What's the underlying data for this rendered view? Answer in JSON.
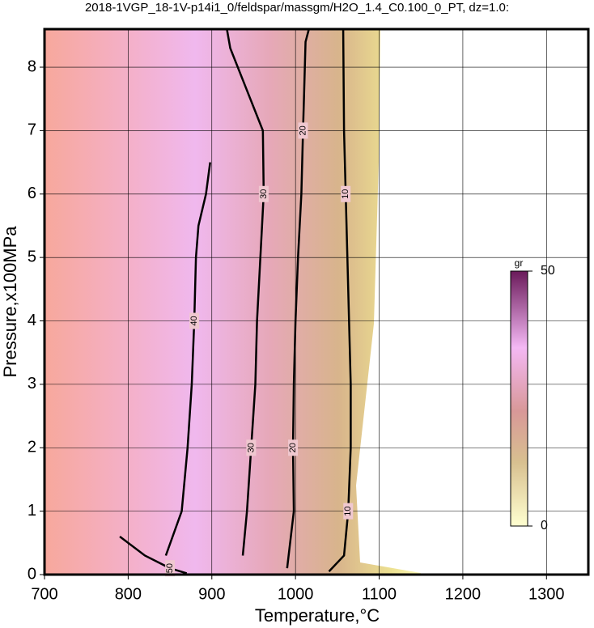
{
  "chart_data": {
    "type": "contour",
    "title": "2018-1VGP_18-1V-p14i1_0/feldspar/massgm/H2O_1.4_C0.100_0_PT, dz=1.0:",
    "xlabel": "Temperature,°C",
    "ylabel": "Pressure,x100MPa",
    "xlim": [
      700,
      1350
    ],
    "xticks": [
      700,
      800,
      900,
      1000,
      1100,
      1200,
      1300
    ],
    "ylim": [
      0,
      8.6
    ],
    "yticks": [
      0,
      1,
      2,
      3,
      4,
      5,
      6,
      7,
      8
    ],
    "grid": true,
    "color": "#000000",
    "contours": [
      {
        "level": 10,
        "x": [
          1040,
          1058,
          1063,
          1066,
          1066,
          1064,
          1062,
          1060,
          1058,
          1057
        ],
        "y": [
          0.05,
          0.3,
          1,
          2,
          3,
          4,
          5,
          6,
          7,
          8.6
        ]
      },
      {
        "level": 20,
        "x": [
          990,
          998,
          997,
          998,
          1000,
          1003,
          1007,
          1009,
          1012,
          1016
        ],
        "y": [
          0.1,
          1,
          2,
          3,
          4,
          5,
          6,
          7,
          8.4,
          8.6
        ]
      },
      {
        "level": 30,
        "x": [
          937,
          942,
          947,
          952,
          954,
          958,
          962,
          961,
          937,
          922,
          918
        ],
        "y": [
          0.3,
          1,
          2,
          3,
          4,
          5,
          6,
          7,
          7.8,
          8.3,
          8.6
        ]
      },
      {
        "level": 40,
        "x": [
          845,
          864,
          871,
          876,
          879,
          881,
          884,
          893,
          898
        ],
        "y": [
          0.3,
          1,
          2,
          3,
          4,
          5,
          5.5,
          6,
          6.5
        ]
      },
      {
        "level": 50,
        "x": [
          790,
          820,
          850,
          870
        ],
        "y": [
          0.6,
          0.3,
          0.1,
          0.02
        ]
      }
    ],
    "colorbar": {
      "label": "gr",
      "lim": [
        0,
        50
      ],
      "ticks": [
        0,
        50
      ]
    }
  }
}
